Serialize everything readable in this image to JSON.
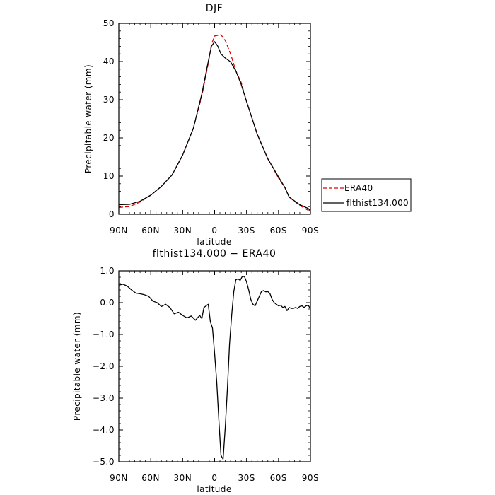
{
  "chart_data": [
    {
      "type": "line",
      "title": "DJF",
      "xlabel": "latitude",
      "ylabel": "Precipitable water (mm)",
      "xlim": [
        90,
        -90
      ],
      "ylim": [
        0,
        50
      ],
      "xticks": [
        {
          "value": 90,
          "label": "90N"
        },
        {
          "value": 60,
          "label": "60N"
        },
        {
          "value": 30,
          "label": "30N"
        },
        {
          "value": 0,
          "label": "0"
        },
        {
          "value": -30,
          "label": "30S"
        },
        {
          "value": -60,
          "label": "60S"
        },
        {
          "value": -90,
          "label": "90S"
        }
      ],
      "yticks": [
        {
          "value": 0,
          "label": "0"
        },
        {
          "value": 10,
          "label": "10"
        },
        {
          "value": 20,
          "label": "20"
        },
        {
          "value": 30,
          "label": "30"
        },
        {
          "value": 40,
          "label": "40"
        },
        {
          "value": 50,
          "label": "50"
        }
      ],
      "legend": {
        "position": "outside right"
      },
      "series": [
        {
          "name": "ERA40",
          "color": "#e00000",
          "style": "dashed",
          "x": [
            90,
            80,
            70,
            60,
            50,
            40,
            30,
            20,
            12,
            6,
            3,
            0,
            -6,
            -10,
            -15,
            -20,
            -25,
            -30,
            -40,
            -50,
            -60,
            -66,
            -70,
            -80,
            -88,
            -90
          ],
          "y": [
            1.8,
            2.0,
            3.2,
            5.0,
            7.3,
            10.3,
            15.5,
            22.5,
            31.0,
            39.5,
            44.5,
            46.7,
            47.0,
            45.5,
            42.0,
            37.5,
            34.5,
            29.5,
            21.0,
            14.5,
            9.5,
            7.0,
            4.5,
            2.3,
            1.0,
            0.8
          ]
        },
        {
          "name": "flthist134.000",
          "color": "#000000",
          "style": "solid",
          "x": [
            90,
            80,
            70,
            60,
            50,
            40,
            30,
            20,
            12,
            6,
            3,
            0,
            -3,
            -6,
            -10,
            -15,
            -20,
            -25,
            -30,
            -40,
            -50,
            -60,
            -66,
            -70,
            -80,
            -88,
            -90
          ],
          "y": [
            2.5,
            2.6,
            3.4,
            5.0,
            7.3,
            10.3,
            15.5,
            22.5,
            31.5,
            40.0,
            44.0,
            45.2,
            44.0,
            42.0,
            40.9,
            39.9,
            37.5,
            34.0,
            29.5,
            21.0,
            14.5,
            9.8,
            7.0,
            4.5,
            2.5,
            1.5,
            0.8
          ]
        }
      ]
    },
    {
      "type": "line",
      "title": "flthist134.000 − ERA40",
      "xlabel": "latitude",
      "ylabel": "Precipitable water (mm)",
      "xlim": [
        90,
        -90
      ],
      "ylim": [
        -5.0,
        1.0
      ],
      "xticks": [
        {
          "value": 90,
          "label": "90N"
        },
        {
          "value": 60,
          "label": "60N"
        },
        {
          "value": 30,
          "label": "30N"
        },
        {
          "value": 0,
          "label": "0"
        },
        {
          "value": -30,
          "label": "30S"
        },
        {
          "value": -60,
          "label": "60S"
        },
        {
          "value": -90,
          "label": "90S"
        }
      ],
      "yticks": [
        {
          "value": 1.0,
          "label": "1.0"
        },
        {
          "value": 0.0,
          "label": "0.0"
        },
        {
          "value": -1.0,
          "label": "−1.0"
        },
        {
          "value": -2.0,
          "label": "−2.0"
        },
        {
          "value": -3.0,
          "label": "−3.0"
        },
        {
          "value": -4.0,
          "label": "−4.0"
        },
        {
          "value": -5.0,
          "label": "−5.0"
        }
      ],
      "series": [
        {
          "color": "#000000",
          "style": "solid",
          "x": [
            90,
            86,
            82,
            78,
            74,
            70,
            66,
            62,
            58,
            54,
            50,
            46,
            42,
            38,
            34,
            30,
            26,
            22,
            18,
            14,
            12,
            10,
            8,
            6,
            4,
            2,
            0,
            -2,
            -4,
            -6,
            -8,
            -10,
            -12,
            -14,
            -16,
            -18,
            -20,
            -22,
            -24,
            -26,
            -28,
            -30,
            -32,
            -34,
            -36,
            -38,
            -40,
            -42,
            -44,
            -46,
            -48,
            -50,
            -52,
            -54,
            -56,
            -58,
            -60,
            -62,
            -64,
            -66,
            -68,
            -70,
            -72,
            -74,
            -76,
            -78,
            -80,
            -82,
            -84,
            -86,
            -88,
            -90
          ],
          "y": [
            0.55,
            0.58,
            0.52,
            0.4,
            0.3,
            0.28,
            0.25,
            0.2,
            0.05,
            0.0,
            -0.12,
            -0.05,
            -0.15,
            -0.35,
            -0.3,
            -0.4,
            -0.48,
            -0.42,
            -0.55,
            -0.4,
            -0.5,
            -0.15,
            -0.1,
            -0.05,
            -0.6,
            -0.8,
            -1.6,
            -2.5,
            -3.7,
            -4.8,
            -4.92,
            -3.9,
            -2.7,
            -1.3,
            -0.4,
            0.35,
            0.72,
            0.75,
            0.7,
            0.82,
            0.82,
            0.65,
            0.4,
            0.1,
            -0.05,
            -0.1,
            0.05,
            0.2,
            0.35,
            0.38,
            0.34,
            0.35,
            0.28,
            0.1,
            0.0,
            -0.05,
            -0.1,
            -0.08,
            -0.15,
            -0.12,
            -0.25,
            -0.15,
            -0.18,
            -0.18,
            -0.15,
            -0.18,
            -0.12,
            -0.1,
            -0.15,
            -0.1,
            -0.08,
            -0.2
          ]
        }
      ]
    }
  ]
}
